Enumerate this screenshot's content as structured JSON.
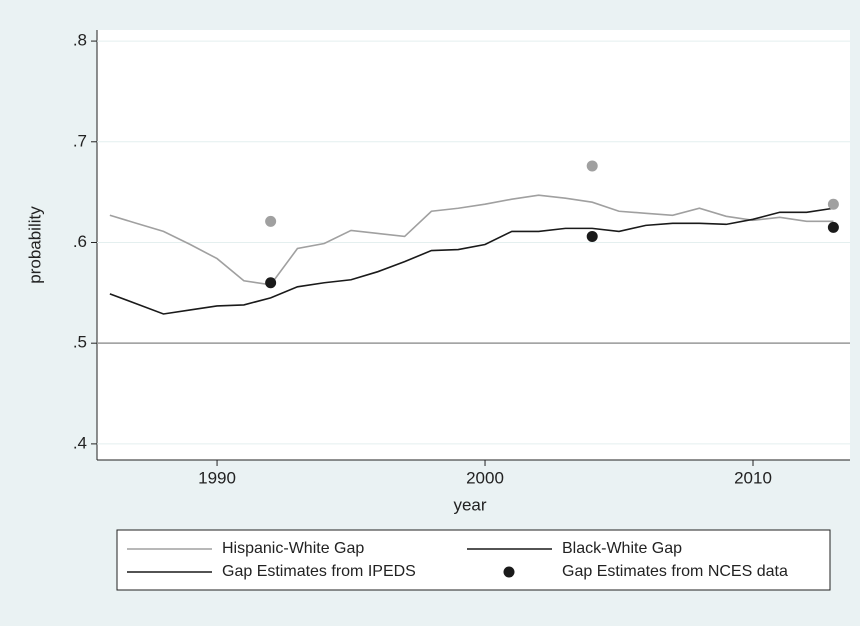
{
  "chart_data": {
    "type": "line",
    "x_label": "year",
    "y_label": "probability",
    "xlim": [
      1985.52,
      2013.62
    ],
    "xticks": [
      1990,
      2000,
      2010
    ],
    "ylim": [
      0.384,
      0.811
    ],
    "yticks": [
      {
        "value": 0.4,
        "label": ".4"
      },
      {
        "value": 0.5,
        "label": ".5"
      },
      {
        "value": 0.6,
        "label": ".6"
      },
      {
        "value": 0.7,
        "label": ".7"
      },
      {
        "value": 0.8,
        "label": ".8"
      }
    ],
    "grid": true,
    "hline": 0.5,
    "series": [
      {
        "name": "Hispanic-White Gap",
        "style": "line",
        "color": "#a0a0a0",
        "x": [
          1986,
          1987,
          1988,
          1989,
          1990,
          1991,
          1992,
          1993,
          1994,
          1995,
          1996,
          1997,
          1998,
          1999,
          2000,
          2001,
          2002,
          2003,
          2004,
          2005,
          2006,
          2007,
          2008,
          2009,
          2010,
          2011,
          2012,
          2013
        ],
        "values": [
          0.627,
          0.619,
          0.611,
          0.598,
          0.584,
          0.562,
          0.558,
          0.594,
          0.599,
          0.612,
          0.609,
          0.606,
          0.631,
          0.634,
          0.638,
          0.643,
          0.647,
          0.644,
          0.64,
          0.631,
          0.629,
          0.627,
          0.634,
          0.626,
          0.622,
          0.625,
          0.621,
          0.621
        ]
      },
      {
        "name": "Black-White Gap",
        "style": "line",
        "color": "#1a1a1a",
        "x": [
          1986,
          1987,
          1988,
          1989,
          1990,
          1991,
          1992,
          1993,
          1994,
          1995,
          1996,
          1997,
          1998,
          1999,
          2000,
          2001,
          2002,
          2003,
          2004,
          2005,
          2006,
          2007,
          2008,
          2009,
          2010,
          2011,
          2012,
          2013
        ],
        "values": [
          0.549,
          0.539,
          0.529,
          0.533,
          0.537,
          0.538,
          0.545,
          0.556,
          0.56,
          0.563,
          0.571,
          0.581,
          0.592,
          0.593,
          0.598,
          0.611,
          0.611,
          0.614,
          0.614,
          0.611,
          0.617,
          0.619,
          0.619,
          0.618,
          0.623,
          0.63,
          0.63,
          0.634
        ]
      },
      {
        "name": "Gap Estimates from IPEDS",
        "style": "line",
        "color": "#1a1a1a"
      },
      {
        "name": "Gap Estimates from NCES data",
        "style": "dot",
        "color": "#1a1a1a",
        "x": [
          1992,
          2004,
          2013
        ],
        "values": [
          0.56,
          0.606,
          0.615
        ]
      },
      {
        "style": "dot",
        "color": "#a0a0a0",
        "x": [
          1992,
          2004,
          2013
        ],
        "values": [
          0.621,
          0.676,
          0.638
        ]
      }
    ]
  }
}
